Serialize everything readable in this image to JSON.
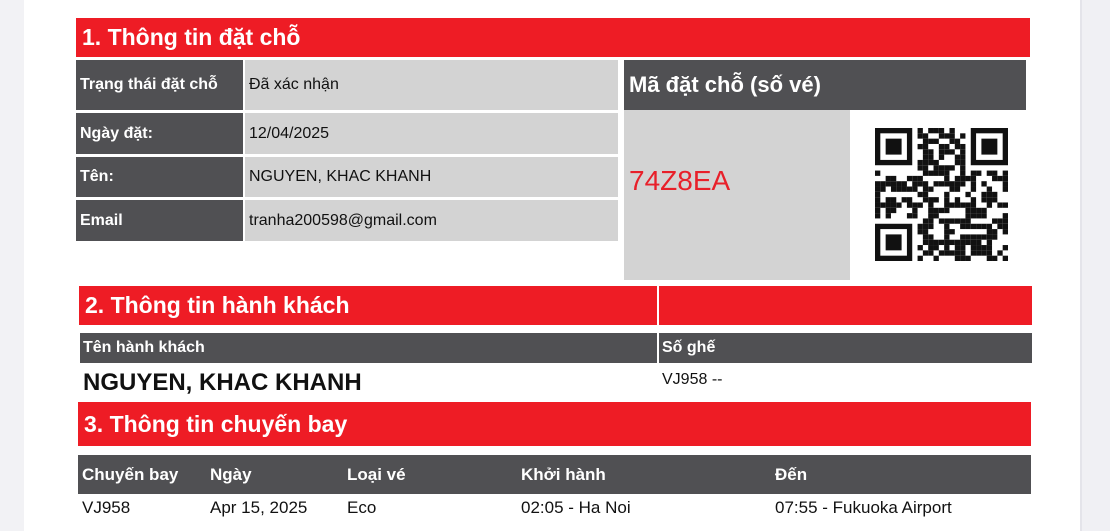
{
  "booking": {
    "title": "1. Thông tin đặt chỗ",
    "rows": [
      {
        "label": "Trạng thái đặt chỗ",
        "value": "Đã xác nhận"
      },
      {
        "label": "Ngày đặt:",
        "value": "12/04/2025"
      },
      {
        "label": "Tên:",
        "value": "NGUYEN, KHAC KHANH"
      },
      {
        "label": "Email",
        "value": "tranha200598@gmail.com"
      }
    ],
    "code_label": "Mã đặt chỗ (số vé)",
    "code": "74Z8EA",
    "code_color": "#e8202a",
    "qr_icon": "qr-code"
  },
  "passenger": {
    "title": "2. Thông tin hành khách",
    "col_name": "Tên hành khách",
    "col_seat": "Số ghế",
    "name": "NGUYEN, KHAC KHANH",
    "seat": "VJ958 --"
  },
  "flight": {
    "title": "3. Thông tin chuyến bay",
    "headers": [
      "Chuyến bay",
      "Ngày",
      "Loại vé",
      "Khởi hành",
      "Đến"
    ],
    "row": [
      "VJ958",
      "Apr 15, 2025",
      "Eco",
      "02:05 - Ha Noi",
      "07:55 - Fukuoka Airport"
    ]
  },
  "colors": {
    "accent": "#ee1c25",
    "header_dark": "#505053",
    "value_bg": "#d3d3d3"
  }
}
